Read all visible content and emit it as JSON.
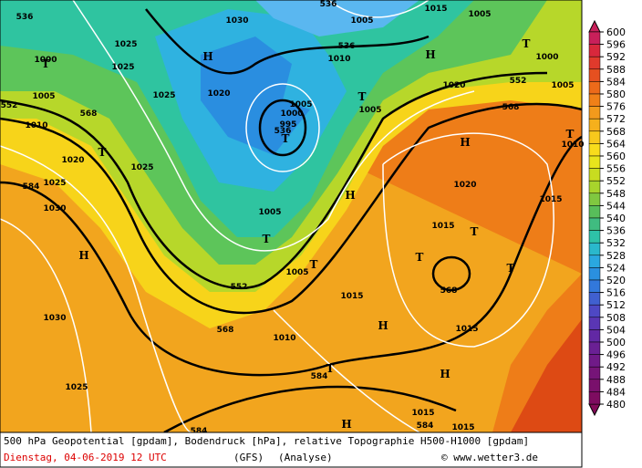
{
  "map": {
    "labels": [
      "536",
      "1030",
      "536",
      "1005",
      "1015",
      "1005",
      "1025",
      "1000",
      "1025",
      "536",
      "1010",
      "1000",
      "552",
      "1005",
      "1020",
      "552",
      "1005",
      "1025",
      "1020",
      "1005",
      "1000",
      "995",
      "536",
      "1005",
      "568",
      "568",
      "1010",
      "1010",
      "1020",
      "1025",
      "1025",
      "1020",
      "584",
      "1030",
      "1005",
      "1015",
      "1015",
      "1005",
      "552",
      "568",
      "1015",
      "1030",
      "568",
      "1010",
      "1015",
      "584",
      "1025",
      "1015",
      "584",
      "584",
      "1015"
    ],
    "centers": [
      "H",
      "T",
      "T",
      "T",
      "T",
      "T",
      "H",
      "T",
      "H",
      "H",
      "T",
      "T",
      "T",
      "T",
      "T",
      "H",
      "H",
      "T",
      "H",
      "H"
    ]
  },
  "colorbar": {
    "ticks": [
      600,
      596,
      592,
      588,
      584,
      580,
      576,
      572,
      568,
      564,
      560,
      556,
      552,
      548,
      544,
      540,
      536,
      532,
      528,
      524,
      520,
      516,
      512,
      508,
      504,
      500,
      496,
      492,
      488,
      484,
      480
    ]
  },
  "caption": {
    "line1": "500 hPa Geopotential [gpdam], Bodendruck [hPa], relative Topographie H500-H1000 [gpdam]",
    "date": "Dienstag, 04-06-2019  12 UTC",
    "model": "(GFS)",
    "run": "(Analyse)",
    "credit": "© www.wetter3.de"
  }
}
